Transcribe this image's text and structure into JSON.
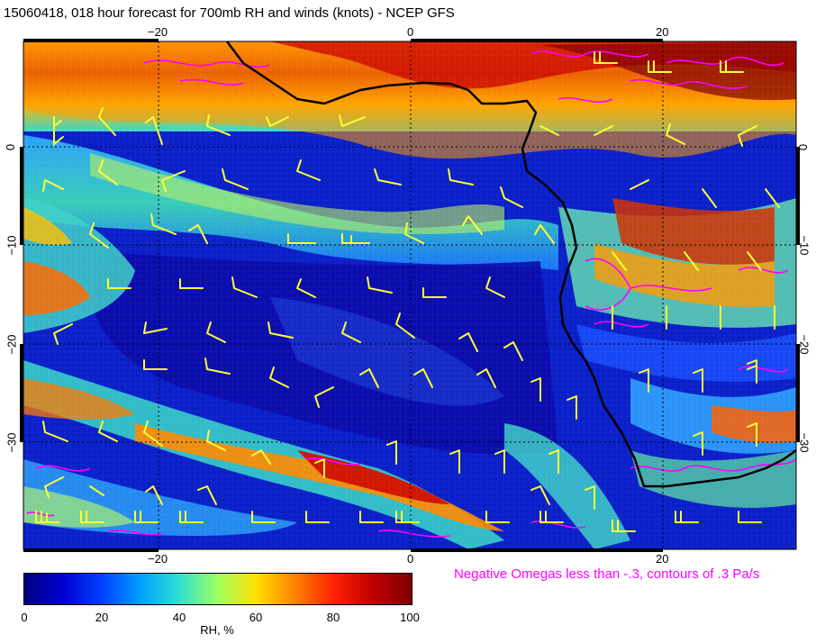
{
  "title": "15060418, 018 hour forecast for 700mb RH and winds (knots) - NCEP GFS",
  "map": {
    "top_lon_labels": [
      "−20",
      "0",
      "20"
    ],
    "bottom_lon_labels": [
      "−20",
      "0",
      "20"
    ],
    "left_lat_labels": [
      "0",
      "−10",
      "−20",
      "−30"
    ],
    "right_lat_labels": [
      "0",
      "−10",
      "−20",
      "−30"
    ],
    "colors": {
      "coast": "#000000",
      "wind_barbs": "#ffff33",
      "omega_contours": "#ff00ff",
      "grid": "#000000"
    }
  },
  "omega_caption": "Negative Omegas less than -.3, contours of .3 Pa/s",
  "colorbar": {
    "ticks": [
      "0",
      "20",
      "40",
      "60",
      "80",
      "100"
    ],
    "label": "RH, %"
  }
}
